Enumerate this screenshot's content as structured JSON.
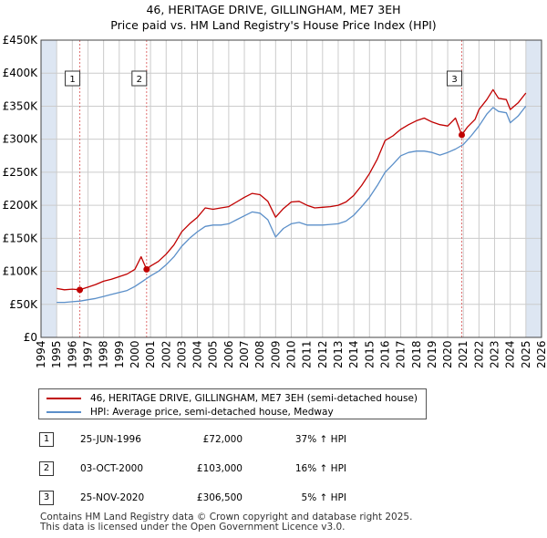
{
  "title": {
    "line1": "46, HERITAGE DRIVE, GILLINGHAM, ME7 3EH",
    "line2": "Price paid vs. HM Land Registry's House Price Index (HPI)"
  },
  "colors": {
    "property_line": "#c00000",
    "hpi_line": "#5b8fc9",
    "sale_marker": "#c00000",
    "shade": "#dde6f2",
    "grid": "#cccccc"
  },
  "chart_data": {
    "type": "line",
    "title": "46, HERITAGE DRIVE, GILLINGHAM, ME7 3EH — Price paid vs. HM Land Registry's House Price Index (HPI)",
    "xlabel": "",
    "ylabel": "",
    "xlim": [
      1994,
      2026
    ],
    "ylim": [
      0,
      450000
    ],
    "x_ticks": [
      1994,
      1995,
      1996,
      1997,
      1998,
      1999,
      2000,
      2001,
      2002,
      2003,
      2004,
      2005,
      2006,
      2007,
      2008,
      2009,
      2010,
      2011,
      2012,
      2013,
      2014,
      2015,
      2016,
      2017,
      2018,
      2019,
      2020,
      2021,
      2022,
      2023,
      2024,
      2025,
      2026
    ],
    "y_ticks": [
      {
        "value": 0,
        "label": "£0"
      },
      {
        "value": 50000,
        "label": "£50K"
      },
      {
        "value": 100000,
        "label": "£100K"
      },
      {
        "value": 150000,
        "label": "£150K"
      },
      {
        "value": 200000,
        "label": "£200K"
      },
      {
        "value": 250000,
        "label": "£250K"
      },
      {
        "value": 300000,
        "label": "£300K"
      },
      {
        "value": 350000,
        "label": "£350K"
      },
      {
        "value": 400000,
        "label": "£400K"
      },
      {
        "value": 450000,
        "label": "£450K"
      }
    ],
    "shaded_ranges": [
      [
        1994,
        1995
      ],
      [
        2025,
        2026
      ]
    ],
    "grid": true,
    "series": [
      {
        "name": "46, HERITAGE DRIVE, GILLINGHAM, ME7 3EH (semi-detached house)",
        "color": "#c00000",
        "points": [
          [
            1995.0,
            74000
          ],
          [
            1995.5,
            72000
          ],
          [
            1996.0,
            73000
          ],
          [
            1996.48,
            72000
          ],
          [
            1997.0,
            76000
          ],
          [
            1997.5,
            80000
          ],
          [
            1998.0,
            85000
          ],
          [
            1998.5,
            88000
          ],
          [
            1999.0,
            92000
          ],
          [
            1999.5,
            96000
          ],
          [
            2000.0,
            103000
          ],
          [
            2000.4,
            122000
          ],
          [
            2000.75,
            103000
          ],
          [
            2001.0,
            108000
          ],
          [
            2001.5,
            115000
          ],
          [
            2002.0,
            126000
          ],
          [
            2002.5,
            140000
          ],
          [
            2003.0,
            160000
          ],
          [
            2003.5,
            172000
          ],
          [
            2004.0,
            182000
          ],
          [
            2004.5,
            196000
          ],
          [
            2005.0,
            194000
          ],
          [
            2005.5,
            196000
          ],
          [
            2006.0,
            198000
          ],
          [
            2006.5,
            205000
          ],
          [
            2007.0,
            212000
          ],
          [
            2007.5,
            218000
          ],
          [
            2008.0,
            216000
          ],
          [
            2008.5,
            206000
          ],
          [
            2009.0,
            182000
          ],
          [
            2009.5,
            195000
          ],
          [
            2010.0,
            205000
          ],
          [
            2010.5,
            206000
          ],
          [
            2011.0,
            200000
          ],
          [
            2011.5,
            196000
          ],
          [
            2012.0,
            197000
          ],
          [
            2012.5,
            198000
          ],
          [
            2013.0,
            200000
          ],
          [
            2013.5,
            205000
          ],
          [
            2014.0,
            215000
          ],
          [
            2014.5,
            230000
          ],
          [
            2015.0,
            248000
          ],
          [
            2015.5,
            270000
          ],
          [
            2016.0,
            298000
          ],
          [
            2016.5,
            305000
          ],
          [
            2017.0,
            315000
          ],
          [
            2017.5,
            322000
          ],
          [
            2018.0,
            328000
          ],
          [
            2018.5,
            332000
          ],
          [
            2019.0,
            326000
          ],
          [
            2019.5,
            322000
          ],
          [
            2020.0,
            320000
          ],
          [
            2020.5,
            332000
          ],
          [
            2020.9,
            306500
          ],
          [
            2021.25,
            318000
          ],
          [
            2021.75,
            330000
          ],
          [
            2022.0,
            345000
          ],
          [
            2022.5,
            360000
          ],
          [
            2022.9,
            375000
          ],
          [
            2023.25,
            362000
          ],
          [
            2023.75,
            360000
          ],
          [
            2024.0,
            345000
          ],
          [
            2024.5,
            355000
          ],
          [
            2025.0,
            370000
          ]
        ]
      },
      {
        "name": "HPI: Average price, semi-detached house, Medway",
        "color": "#5b8fc9",
        "points": [
          [
            1995.0,
            53000
          ],
          [
            1995.5,
            53000
          ],
          [
            1996.0,
            54000
          ],
          [
            1996.5,
            55000
          ],
          [
            1997.0,
            57000
          ],
          [
            1997.5,
            59000
          ],
          [
            1998.0,
            62000
          ],
          [
            1998.5,
            65000
          ],
          [
            1999.0,
            68000
          ],
          [
            1999.5,
            71000
          ],
          [
            2000.0,
            77000
          ],
          [
            2000.5,
            85000
          ],
          [
            2001.0,
            93000
          ],
          [
            2001.5,
            100000
          ],
          [
            2002.0,
            110000
          ],
          [
            2002.5,
            122000
          ],
          [
            2003.0,
            138000
          ],
          [
            2003.5,
            150000
          ],
          [
            2004.0,
            160000
          ],
          [
            2004.5,
            168000
          ],
          [
            2005.0,
            170000
          ],
          [
            2005.5,
            170000
          ],
          [
            2006.0,
            172000
          ],
          [
            2006.5,
            178000
          ],
          [
            2007.0,
            184000
          ],
          [
            2007.5,
            190000
          ],
          [
            2008.0,
            188000
          ],
          [
            2008.5,
            178000
          ],
          [
            2009.0,
            152000
          ],
          [
            2009.5,
            165000
          ],
          [
            2010.0,
            172000
          ],
          [
            2010.5,
            174000
          ],
          [
            2011.0,
            170000
          ],
          [
            2011.5,
            170000
          ],
          [
            2012.0,
            170000
          ],
          [
            2012.5,
            171000
          ],
          [
            2013.0,
            172000
          ],
          [
            2013.5,
            176000
          ],
          [
            2014.0,
            185000
          ],
          [
            2014.5,
            198000
          ],
          [
            2015.0,
            212000
          ],
          [
            2015.5,
            230000
          ],
          [
            2016.0,
            250000
          ],
          [
            2016.5,
            262000
          ],
          [
            2017.0,
            275000
          ],
          [
            2017.5,
            280000
          ],
          [
            2018.0,
            282000
          ],
          [
            2018.5,
            282000
          ],
          [
            2019.0,
            280000
          ],
          [
            2019.5,
            276000
          ],
          [
            2020.0,
            280000
          ],
          [
            2020.5,
            285000
          ],
          [
            2021.0,
            292000
          ],
          [
            2021.5,
            305000
          ],
          [
            2022.0,
            320000
          ],
          [
            2022.5,
            338000
          ],
          [
            2022.9,
            348000
          ],
          [
            2023.25,
            342000
          ],
          [
            2023.75,
            340000
          ],
          [
            2024.0,
            325000
          ],
          [
            2024.5,
            335000
          ],
          [
            2025.0,
            350000
          ]
        ]
      }
    ],
    "sales": [
      {
        "id": "1",
        "x": 1996.48,
        "price": 72000
      },
      {
        "id": "2",
        "x": 2000.75,
        "price": 103000
      },
      {
        "id": "3",
        "x": 2020.9,
        "price": 306500
      }
    ]
  },
  "legend": {
    "property_label": "46, HERITAGE DRIVE, GILLINGHAM, ME7 3EH (semi-detached house)",
    "hpi_label": "HPI: Average price, semi-detached house, Medway"
  },
  "sales_table": [
    {
      "id": "1",
      "date": "25-JUN-1996",
      "price": "£72,000",
      "hpi": "37% ↑ HPI"
    },
    {
      "id": "2",
      "date": "03-OCT-2000",
      "price": "£103,000",
      "hpi": "16% ↑ HPI"
    },
    {
      "id": "3",
      "date": "25-NOV-2020",
      "price": "£306,500",
      "hpi": "5% ↑ HPI"
    }
  ],
  "footer": {
    "line1": "Contains HM Land Registry data © Crown copyright and database right 2025.",
    "line2": "This data is licensed under the Open Government Licence v3.0."
  }
}
